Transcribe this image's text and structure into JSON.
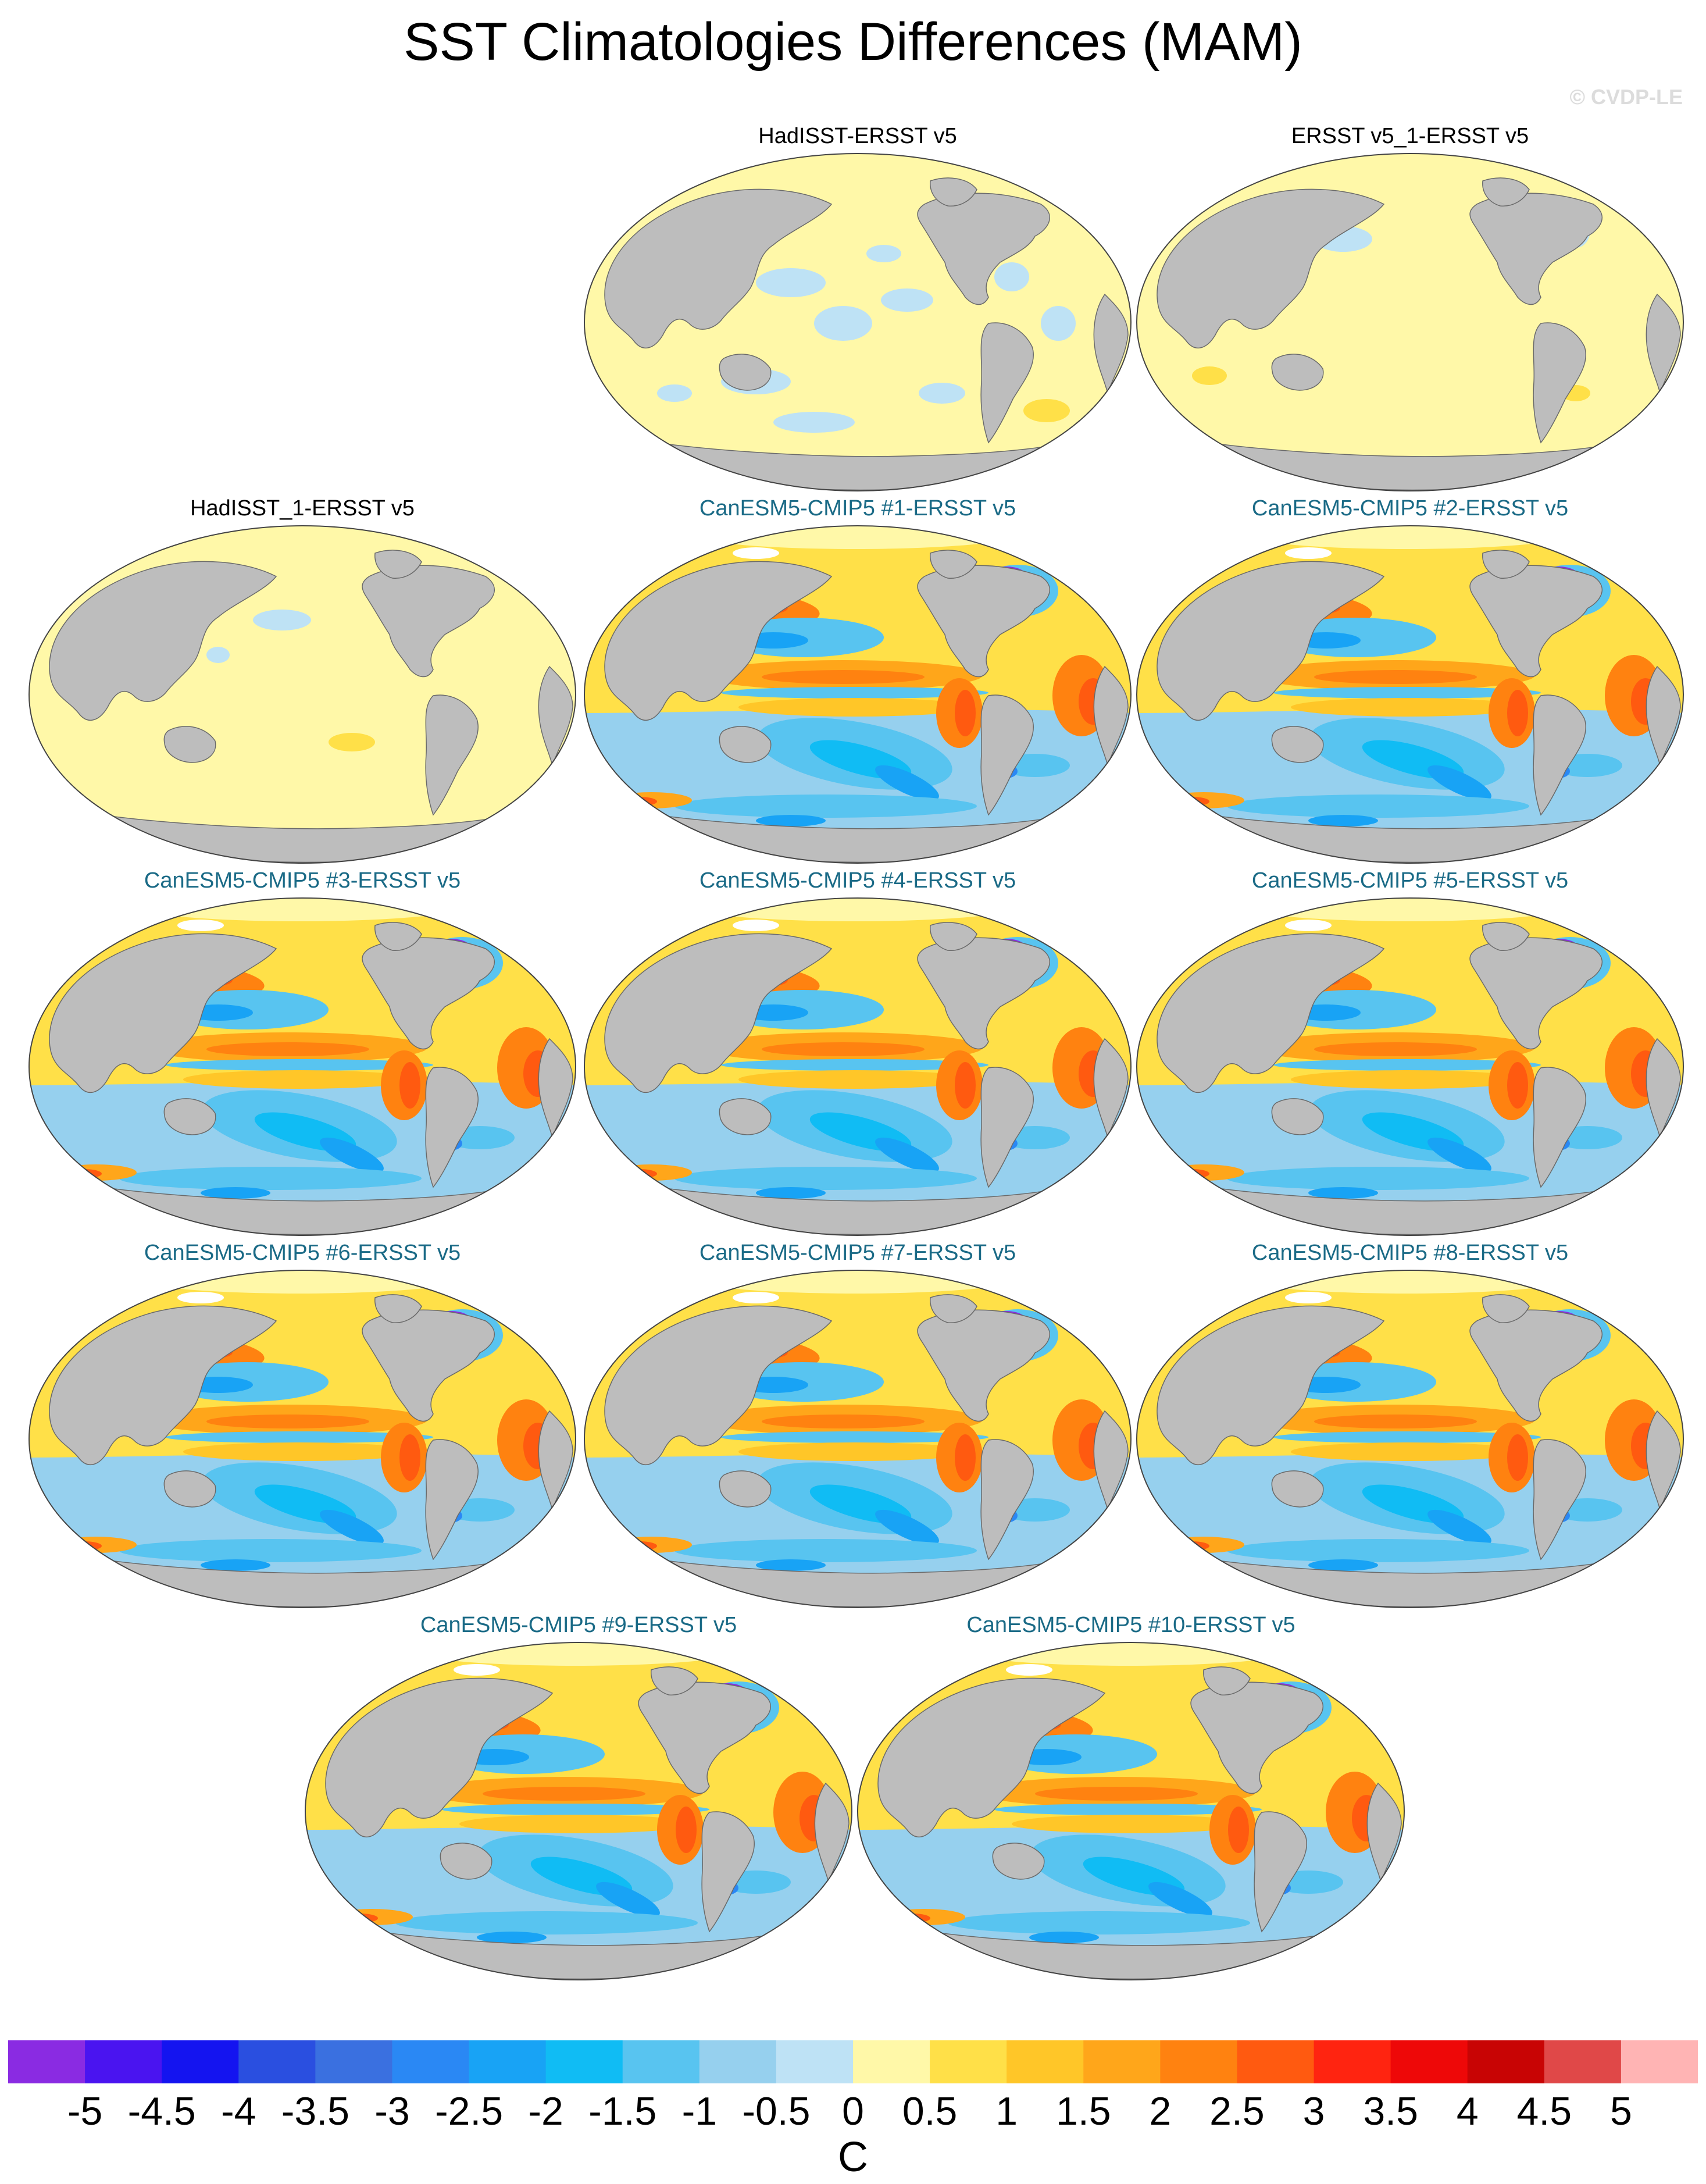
{
  "title": "SST Climatologies Differences (MAM)",
  "copyright": "© CVDP-LE",
  "panels": [
    {
      "title": "HadISST-ERSST v5",
      "kind": "obs",
      "pattern": "obs-a"
    },
    {
      "title": "ERSST v5_1-ERSST v5",
      "kind": "obs",
      "pattern": "obs-b"
    },
    {
      "title": "HadISST_1-ERSST v5",
      "kind": "obs",
      "pattern": "obs-c"
    },
    {
      "title": "CanESM5-CMIP5 #1-ERSST v5",
      "kind": "model",
      "pattern": "model"
    },
    {
      "title": "CanESM5-CMIP5 #2-ERSST v5",
      "kind": "model",
      "pattern": "model"
    },
    {
      "title": "CanESM5-CMIP5 #3-ERSST v5",
      "kind": "model",
      "pattern": "model"
    },
    {
      "title": "CanESM5-CMIP5 #4-ERSST v5",
      "kind": "model",
      "pattern": "model"
    },
    {
      "title": "CanESM5-CMIP5 #5-ERSST v5",
      "kind": "model",
      "pattern": "model"
    },
    {
      "title": "CanESM5-CMIP5 #6-ERSST v5",
      "kind": "model",
      "pattern": "model"
    },
    {
      "title": "CanESM5-CMIP5 #7-ERSST v5",
      "kind": "model",
      "pattern": "model"
    },
    {
      "title": "CanESM5-CMIP5 #8-ERSST v5",
      "kind": "model",
      "pattern": "model"
    },
    {
      "title": "CanESM5-CMIP5 #9-ERSST v5",
      "kind": "model",
      "pattern": "model"
    },
    {
      "title": "CanESM5-CMIP5 #10-ERSST v5",
      "kind": "model",
      "pattern": "model"
    }
  ],
  "colorbar": {
    "label": "C",
    "ticks": [
      "-5",
      "-4.5",
      "-4",
      "-3.5",
      "-3",
      "-2.5",
      "-2",
      "-1.5",
      "-1",
      "-0.5",
      "0",
      "0.5",
      "1",
      "1.5",
      "2",
      "2.5",
      "3",
      "3.5",
      "4",
      "4.5",
      "5"
    ],
    "colors": [
      "#8a2be2",
      "#4a14f0",
      "#1414f0",
      "#2a4fe0",
      "#3a70e0",
      "#2a88f4",
      "#18a3f5",
      "#10bcf4",
      "#58c4f0",
      "#96d0ee",
      "#bee2f5",
      "#fff8a8",
      "#ffe048",
      "#ffc628",
      "#ffa61a",
      "#ff8210",
      "#ff5a10",
      "#ff2410",
      "#ee0808",
      "#c80404",
      "#e04848",
      "#ffb4b4"
    ]
  },
  "colors": {
    "land": "#bdbdbd",
    "land_edge": "#6a6a6a",
    "missing": "#ffffff"
  }
}
